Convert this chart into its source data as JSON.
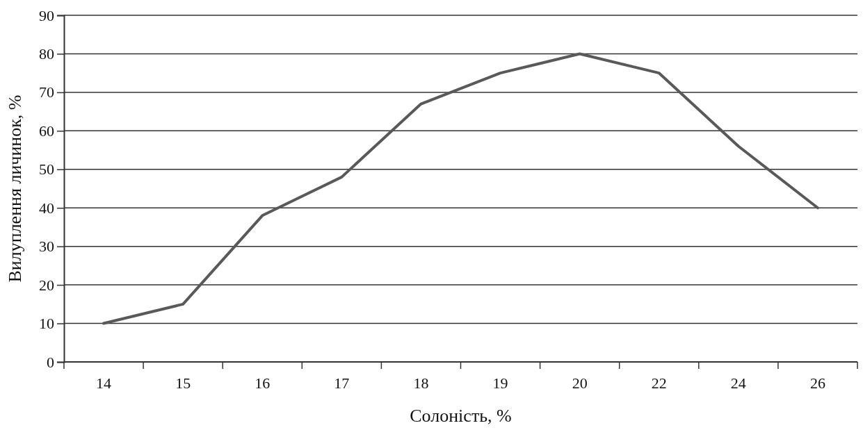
{
  "chart_data": {
    "type": "line",
    "xlabel": "Солоність, %",
    "ylabel": "Вилуплення личинок, %",
    "categories": [
      "14",
      "15",
      "16",
      "17",
      "18",
      "19",
      "20",
      "22",
      "24",
      "26"
    ],
    "series": [
      {
        "color": "#595959",
        "values": [
          10,
          15,
          38,
          48,
          67,
          75,
          80,
          75,
          56,
          40
        ]
      }
    ],
    "ylim": [
      0,
      90
    ],
    "yticks": [
      0,
      10,
      20,
      30,
      40,
      50,
      60,
      70,
      80,
      90
    ],
    "grid": "y",
    "marker": "none",
    "line_style": "solid"
  }
}
